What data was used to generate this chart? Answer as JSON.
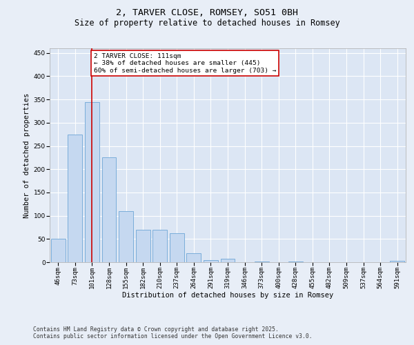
{
  "title": "2, TARVER CLOSE, ROMSEY, SO51 0BH",
  "subtitle": "Size of property relative to detached houses in Romsey",
  "xlabel": "Distribution of detached houses by size in Romsey",
  "ylabel": "Number of detached properties",
  "categories": [
    "46sqm",
    "73sqm",
    "101sqm",
    "128sqm",
    "155sqm",
    "182sqm",
    "210sqm",
    "237sqm",
    "264sqm",
    "291sqm",
    "319sqm",
    "346sqm",
    "373sqm",
    "400sqm",
    "428sqm",
    "455sqm",
    "482sqm",
    "509sqm",
    "537sqm",
    "564sqm",
    "591sqm"
  ],
  "values": [
    50,
    275,
    345,
    225,
    110,
    70,
    70,
    63,
    20,
    5,
    8,
    0,
    2,
    0,
    2,
    0,
    0,
    0,
    0,
    0,
    3
  ],
  "bar_color": "#c5d8f0",
  "bar_edgecolor": "#7aadda",
  "vline_x": 2,
  "vline_color": "#cc0000",
  "annotation_text": "2 TARVER CLOSE: 111sqm\n← 38% of detached houses are smaller (445)\n60% of semi-detached houses are larger (703) →",
  "annotation_box_color": "#ffffff",
  "annotation_box_edgecolor": "#cc0000",
  "ylim": [
    0,
    460
  ],
  "yticks": [
    0,
    50,
    100,
    150,
    200,
    250,
    300,
    350,
    400,
    450
  ],
  "bg_color": "#e8eef7",
  "plot_bg_color": "#dce6f4",
  "footer_line1": "Contains HM Land Registry data © Crown copyright and database right 2025.",
  "footer_line2": "Contains public sector information licensed under the Open Government Licence v3.0.",
  "title_fontsize": 9.5,
  "subtitle_fontsize": 8.5,
  "xlabel_fontsize": 7.5,
  "ylabel_fontsize": 7.5,
  "tick_fontsize": 6.5,
  "annotation_fontsize": 6.8,
  "footer_fontsize": 5.8
}
